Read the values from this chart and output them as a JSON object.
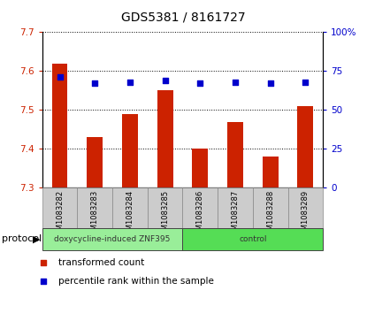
{
  "title": "GDS5381 / 8161727",
  "samples": [
    "GSM1083282",
    "GSM1083283",
    "GSM1083284",
    "GSM1083285",
    "GSM1083286",
    "GSM1083287",
    "GSM1083288",
    "GSM1083289"
  ],
  "transformed_count": [
    7.62,
    7.43,
    7.49,
    7.55,
    7.4,
    7.47,
    7.38,
    7.51
  ],
  "percentile_rank": [
    71,
    67,
    68,
    69,
    67,
    68,
    67,
    68
  ],
  "ylim_left": [
    7.3,
    7.7
  ],
  "ylim_right": [
    0,
    100
  ],
  "yticks_left": [
    7.3,
    7.4,
    7.5,
    7.6,
    7.7
  ],
  "yticks_right": [
    0,
    25,
    50,
    75,
    100
  ],
  "bar_color": "#cc2200",
  "dot_color": "#0000cc",
  "protocol_groups": [
    {
      "label": "doxycycline-induced ZNF395",
      "start": 0,
      "end": 4,
      "color": "#99ee99"
    },
    {
      "label": "control",
      "start": 4,
      "end": 8,
      "color": "#55dd55"
    }
  ],
  "protocol_label": "protocol",
  "legend_items": [
    {
      "label": "transformed count",
      "color": "#cc2200"
    },
    {
      "label": "percentile rank within the sample",
      "color": "#0000cc"
    }
  ],
  "background_xtick": "#cccccc",
  "bar_width": 0.45
}
